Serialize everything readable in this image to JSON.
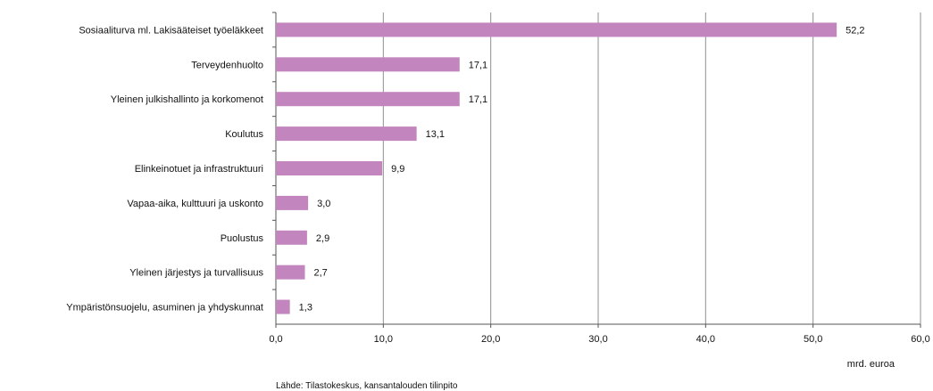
{
  "chart_data": {
    "type": "bar",
    "orientation": "horizontal",
    "categories": [
      "Sosiaaliturva ml. Lakisääteiset työeläkkeet",
      "Terveydenhuolto",
      "Yleinen julkishallinto ja korkomenot",
      "Koulutus",
      "Elinkeinotuet ja infrastruktuuri",
      "Vapaa-aika, kulttuuri ja uskonto",
      "Puolustus",
      "Yleinen järjestys ja turvallisuus",
      "Ympäristönsuojelu, asuminen ja yhdyskunnat"
    ],
    "values": [
      52.2,
      17.1,
      17.1,
      13.1,
      9.9,
      3.0,
      2.9,
      2.7,
      1.3
    ],
    "value_labels": [
      "52,2",
      "17,1",
      "17,1",
      "13,1",
      "9,9",
      "3,0",
      "2,9",
      "2,7",
      "1,3"
    ],
    "xlim": [
      0,
      60
    ],
    "xticks": [
      0,
      10,
      20,
      30,
      40,
      50,
      60
    ],
    "xtick_labels": [
      "0,0",
      "10,0",
      "20,0",
      "30,0",
      "40,0",
      "50,0",
      "60,0"
    ],
    "xlabel": "mrd. euroa",
    "source": "Lähde: Tilastokeskus, kansantalouden tilinpito",
    "grid": true,
    "bar_color": "#c285bd",
    "grid_color": "#8f8f8f"
  }
}
